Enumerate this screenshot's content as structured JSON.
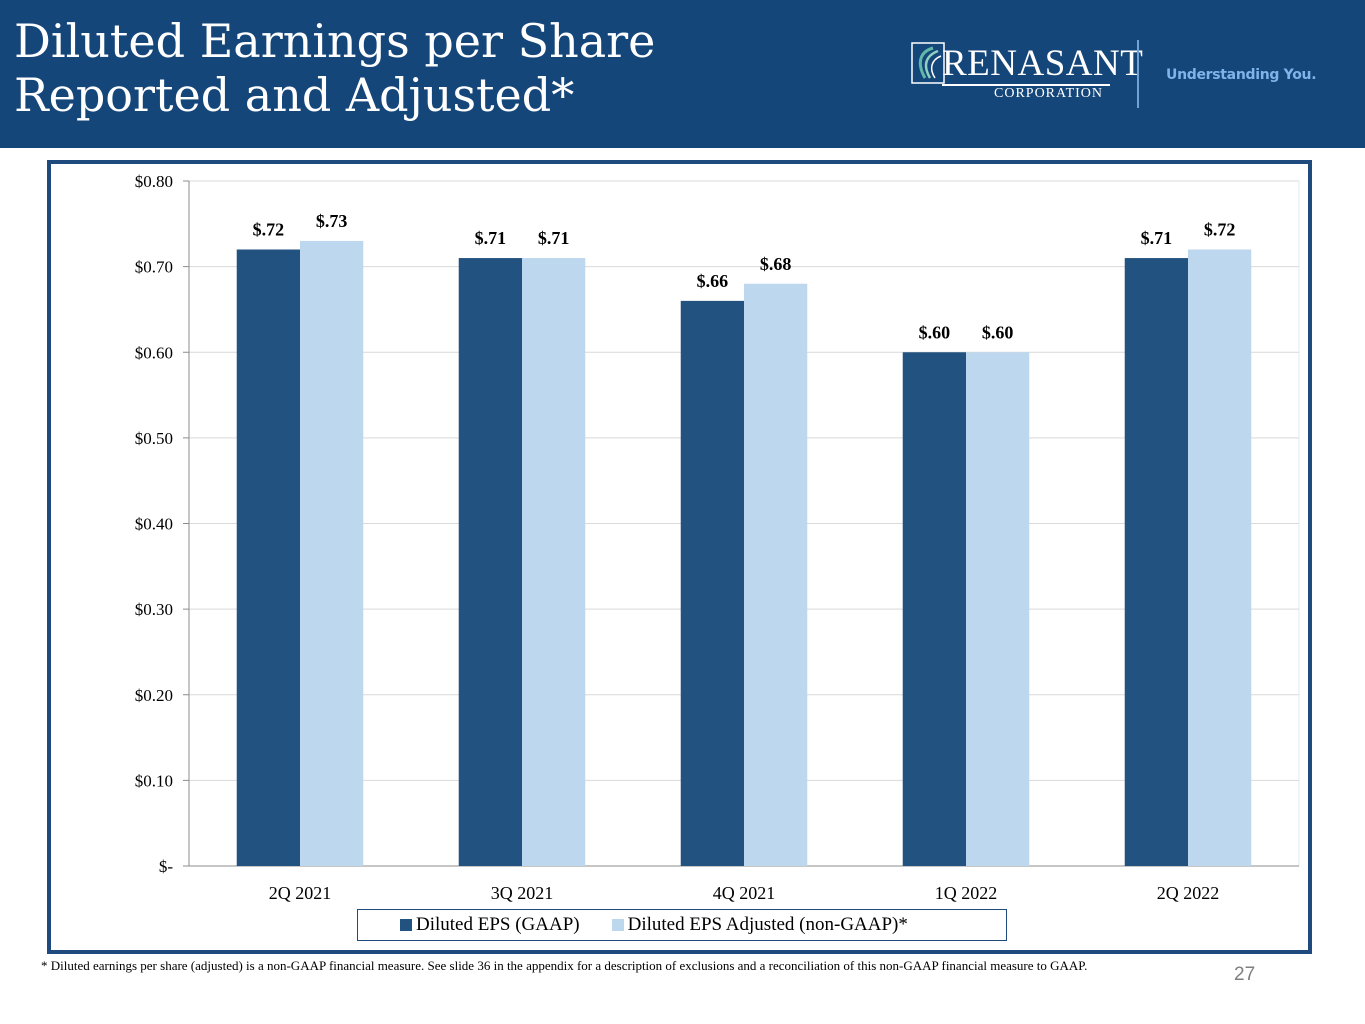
{
  "header": {
    "title_line1": "Diluted Earnings per Share",
    "title_line2": "Reported and Adjusted*",
    "brand_name": "RENASANT",
    "brand_sub": "CORPORATION",
    "tagline": "Understanding You."
  },
  "colors": {
    "header_bg": "#15467a",
    "gaap": "#22527f",
    "adjusted": "#bdd7ee",
    "frame": "#1e4a7d",
    "gridline": "#d9d9d9"
  },
  "chart_data": {
    "type": "bar",
    "title": "",
    "xlabel": "",
    "ylabel": "",
    "ylim": [
      0,
      0.8
    ],
    "yticks": [
      {
        "value": 0.8,
        "label": "$0.80"
      },
      {
        "value": 0.7,
        "label": "$0.70"
      },
      {
        "value": 0.6,
        "label": "$0.60"
      },
      {
        "value": 0.5,
        "label": "$0.50"
      },
      {
        "value": 0.4,
        "label": "$0.40"
      },
      {
        "value": 0.3,
        "label": "$0.30"
      },
      {
        "value": 0.2,
        "label": "$0.20"
      },
      {
        "value": 0.1,
        "label": "$0.10"
      },
      {
        "value": 0,
        "label": "$-"
      }
    ],
    "categories": [
      "2Q 2021",
      "3Q 2021",
      "4Q 2021",
      "1Q 2022",
      "2Q 2022"
    ],
    "series": [
      {
        "name": "Diluted EPS (GAAP)",
        "color": "#22527f",
        "values": [
          0.72,
          0.71,
          0.66,
          0.6,
          0.71
        ],
        "labels": [
          "$.72",
          "$.71",
          "$.66",
          "$.60",
          "$.71"
        ]
      },
      {
        "name": "Diluted EPS Adjusted (non-GAAP)*",
        "color": "#bdd7ee",
        "values": [
          0.73,
          0.71,
          0.68,
          0.6,
          0.72
        ],
        "labels": [
          "$.73",
          "$.71",
          "$.68",
          "$.60",
          "$.72"
        ]
      }
    ],
    "legend": "bottom",
    "grid": true
  },
  "footnote": "* Diluted earnings per share (adjusted) is a non-GAAP financial measure. See slide 36 in the appendix for a description of exclusions and a reconciliation of this non-GAAP financial measure to GAAP.",
  "page_number": "27"
}
